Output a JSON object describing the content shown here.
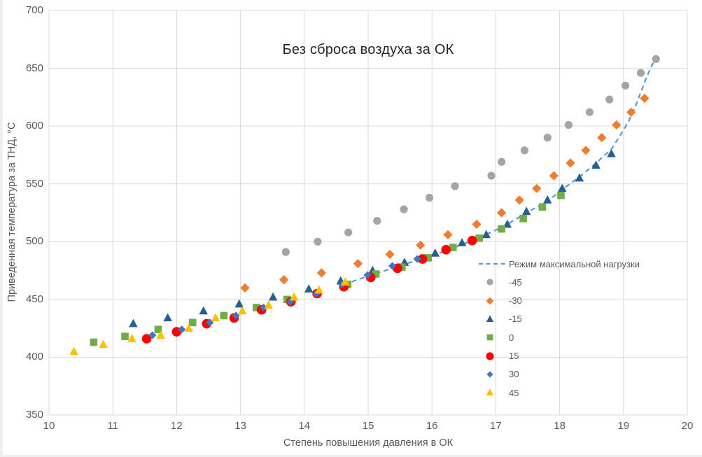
{
  "chart_data": {
    "type": "scatter",
    "title": "Без сброса воздуха за ОК",
    "xlabel": "Степень повышения давления в ОК",
    "ylabel": "Приведенная температура за ТНД, °C",
    "xlim": [
      10,
      20
    ],
    "ylim": [
      350,
      700
    ],
    "x_ticks": [
      10,
      11,
      12,
      13,
      14,
      15,
      16,
      17,
      18,
      19,
      20
    ],
    "y_ticks": [
      350,
      400,
      450,
      500,
      550,
      600,
      650,
      700
    ],
    "grid": true,
    "grid_color": "#D9D9D9",
    "axis_text_color": "#595959",
    "legend_position": "middle-right",
    "line_series": {
      "name": "Режим максимальной нагрузки",
      "color": "#5B9BD5",
      "dashed": true,
      "points": [
        [
          14.62,
          463
        ],
        [
          14.99,
          470
        ],
        [
          15.38,
          477
        ],
        [
          15.77,
          484
        ],
        [
          16.22,
          492
        ],
        [
          16.63,
          501
        ],
        [
          17.0,
          510
        ],
        [
          17.18,
          515
        ],
        [
          17.48,
          525
        ],
        [
          17.81,
          535
        ],
        [
          18.04,
          545
        ],
        [
          18.31,
          556
        ],
        [
          18.57,
          568
        ],
        [
          18.81,
          580
        ],
        [
          18.95,
          592
        ],
        [
          19.08,
          604
        ],
        [
          19.18,
          616
        ],
        [
          19.27,
          629
        ],
        [
          19.36,
          642
        ],
        [
          19.44,
          652
        ],
        [
          19.49,
          657
        ]
      ]
    },
    "series": [
      {
        "name": "-45",
        "marker": "circle",
        "color": "#A5A5A5",
        "size": 5.6,
        "points": [
          [
            13.71,
            491
          ],
          [
            14.21,
            500
          ],
          [
            14.69,
            508
          ],
          [
            15.14,
            518
          ],
          [
            15.56,
            528
          ],
          [
            15.96,
            538
          ],
          [
            16.36,
            548
          ],
          [
            16.93,
            557
          ],
          [
            17.09,
            569
          ],
          [
            17.45,
            579
          ],
          [
            17.81,
            590
          ],
          [
            18.14,
            601
          ],
          [
            18.47,
            612
          ],
          [
            18.78,
            623
          ],
          [
            19.03,
            635
          ],
          [
            19.27,
            646
          ],
          [
            19.51,
            658
          ]
        ]
      },
      {
        "name": "-30",
        "marker": "diamond",
        "color": "#ED7D31",
        "size": 6.6,
        "points": [
          [
            13.07,
            460
          ],
          [
            13.68,
            467
          ],
          [
            14.27,
            473
          ],
          [
            14.84,
            481
          ],
          [
            15.34,
            489
          ],
          [
            15.82,
            497
          ],
          [
            16.25,
            506
          ],
          [
            16.7,
            515
          ],
          [
            17.09,
            525
          ],
          [
            17.37,
            536
          ],
          [
            17.64,
            546
          ],
          [
            17.91,
            557
          ],
          [
            18.17,
            568
          ],
          [
            18.41,
            579
          ],
          [
            18.66,
            590
          ],
          [
            18.89,
            601
          ],
          [
            19.12,
            612
          ],
          [
            19.33,
            624
          ]
        ]
      },
      {
        "name": "-15",
        "marker": "triangle",
        "color": "#255E91",
        "size": 6.8,
        "points": [
          [
            11.32,
            429
          ],
          [
            11.86,
            434
          ],
          [
            12.42,
            440
          ],
          [
            12.98,
            446
          ],
          [
            13.51,
            452
          ],
          [
            14.07,
            459
          ],
          [
            14.57,
            466
          ],
          [
            15.07,
            475
          ],
          [
            15.57,
            482
          ],
          [
            16.05,
            490
          ],
          [
            16.47,
            499
          ],
          [
            16.85,
            506
          ],
          [
            17.18,
            515
          ],
          [
            17.48,
            526
          ],
          [
            17.81,
            536
          ],
          [
            18.04,
            546
          ],
          [
            18.31,
            555
          ],
          [
            18.57,
            566
          ],
          [
            18.81,
            576
          ]
        ]
      },
      {
        "name": "0",
        "marker": "square",
        "color": "#70AD47",
        "size": 5.3,
        "points": [
          [
            10.7,
            413
          ],
          [
            11.19,
            418
          ],
          [
            11.71,
            424
          ],
          [
            12.25,
            430
          ],
          [
            12.74,
            436
          ],
          [
            13.25,
            443
          ],
          [
            13.73,
            450
          ],
          [
            14.68,
            463
          ],
          [
            15.12,
            472
          ],
          [
            15.53,
            478
          ],
          [
            15.94,
            486
          ],
          [
            16.33,
            495
          ],
          [
            16.74,
            503
          ],
          [
            17.09,
            511
          ],
          [
            17.43,
            520
          ],
          [
            17.73,
            530
          ],
          [
            18.02,
            540
          ]
        ]
      },
      {
        "name": "15",
        "marker": "circle",
        "color": "#FF0000",
        "size": 6.8,
        "points": [
          [
            11.53,
            416
          ],
          [
            12.0,
            422
          ],
          [
            12.47,
            429
          ],
          [
            12.9,
            434
          ],
          [
            13.33,
            441
          ],
          [
            13.79,
            448
          ],
          [
            14.2,
            455
          ],
          [
            14.62,
            461
          ],
          [
            15.04,
            469
          ],
          [
            15.46,
            477
          ],
          [
            15.85,
            485
          ],
          [
            16.22,
            493
          ],
          [
            16.63,
            501
          ]
        ]
      },
      {
        "name": "30",
        "marker": "diamond",
        "color": "#4472C4",
        "size": 5.6,
        "points": [
          [
            11.62,
            419
          ],
          [
            12.08,
            424
          ],
          [
            12.52,
            430
          ],
          [
            12.93,
            436
          ],
          [
            13.36,
            443
          ],
          [
            13.78,
            448
          ],
          [
            14.19,
            455
          ],
          [
            14.59,
            463
          ],
          [
            14.99,
            471
          ],
          [
            15.38,
            479
          ],
          [
            15.77,
            485
          ]
        ]
      },
      {
        "name": "45",
        "marker": "triangle",
        "color": "#FFC000",
        "size": 6.8,
        "points": [
          [
            10.39,
            405
          ],
          [
            10.85,
            411
          ],
          [
            11.3,
            416
          ],
          [
            11.75,
            419
          ],
          [
            12.19,
            425
          ],
          [
            12.61,
            434
          ],
          [
            13.03,
            440
          ],
          [
            13.44,
            445
          ],
          [
            13.84,
            452
          ],
          [
            14.23,
            458
          ],
          [
            14.64,
            465
          ]
        ]
      }
    ]
  }
}
